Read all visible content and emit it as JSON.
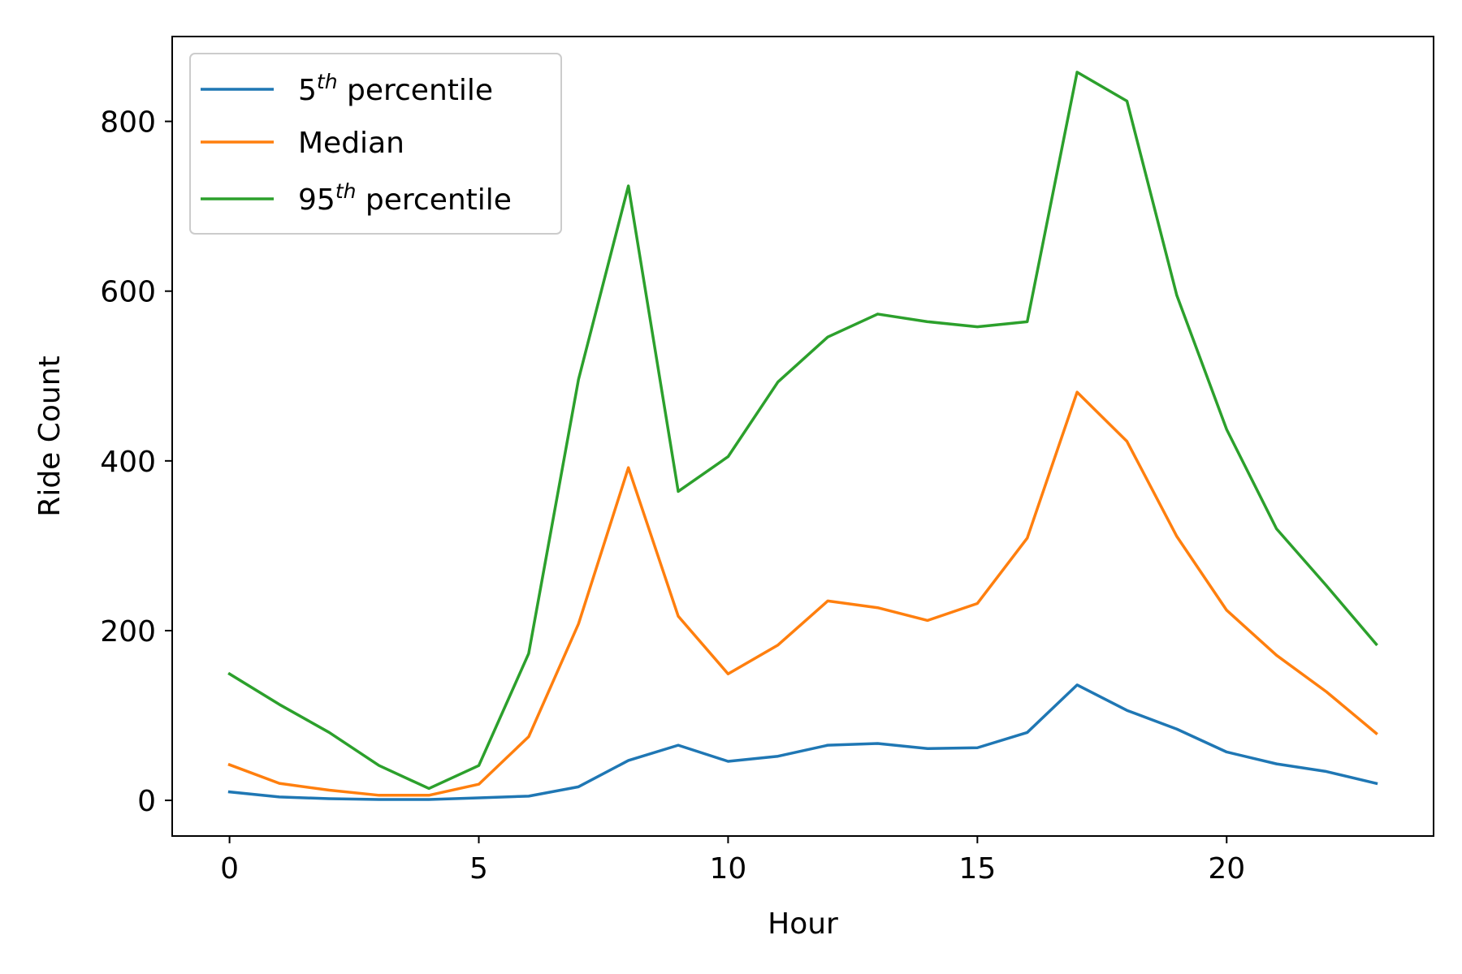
{
  "chart_data": {
    "type": "line",
    "title": "",
    "xlabel": "Hour",
    "ylabel": "Ride Count",
    "xlim": [
      -1.15,
      24.15
    ],
    "ylim": [
      -42,
      900
    ],
    "xticks": [
      0,
      5,
      10,
      15,
      20
    ],
    "yticks": [
      0,
      200,
      400,
      600,
      800
    ],
    "grid": false,
    "legend_position": "upper-left",
    "x": [
      0,
      1,
      2,
      3,
      4,
      5,
      6,
      7,
      8,
      9,
      10,
      11,
      12,
      13,
      14,
      15,
      16,
      17,
      18,
      19,
      20,
      21,
      22,
      23
    ],
    "series": [
      {
        "name": "5th percentile",
        "label_base": "5",
        "label_sup": "th",
        "label_rest": " percentile",
        "color": "#1f77b4",
        "values": [
          10,
          4,
          2,
          1,
          1,
          3,
          5,
          16,
          47,
          65,
          46,
          52,
          65,
          67,
          61,
          62,
          80,
          136,
          106,
          84,
          57,
          43,
          34,
          20
        ]
      },
      {
        "name": "Median",
        "label_base": "Median",
        "label_sup": "",
        "label_rest": "",
        "color": "#ff7f0e",
        "values": [
          42,
          20,
          12,
          6,
          6,
          19,
          75,
          208,
          392,
          217,
          149,
          183,
          235,
          227,
          212,
          232,
          309,
          481,
          423,
          311,
          224,
          171,
          128,
          79
        ]
      },
      {
        "name": "95th percentile",
        "label_base": "95",
        "label_sup": "th",
        "label_rest": " percentile",
        "color": "#2ca02c",
        "values": [
          149,
          113,
          80,
          41,
          14,
          41,
          173,
          496,
          724,
          364,
          405,
          493,
          546,
          573,
          564,
          558,
          564,
          858,
          824,
          595,
          437,
          320,
          253,
          184
        ]
      }
    ]
  }
}
